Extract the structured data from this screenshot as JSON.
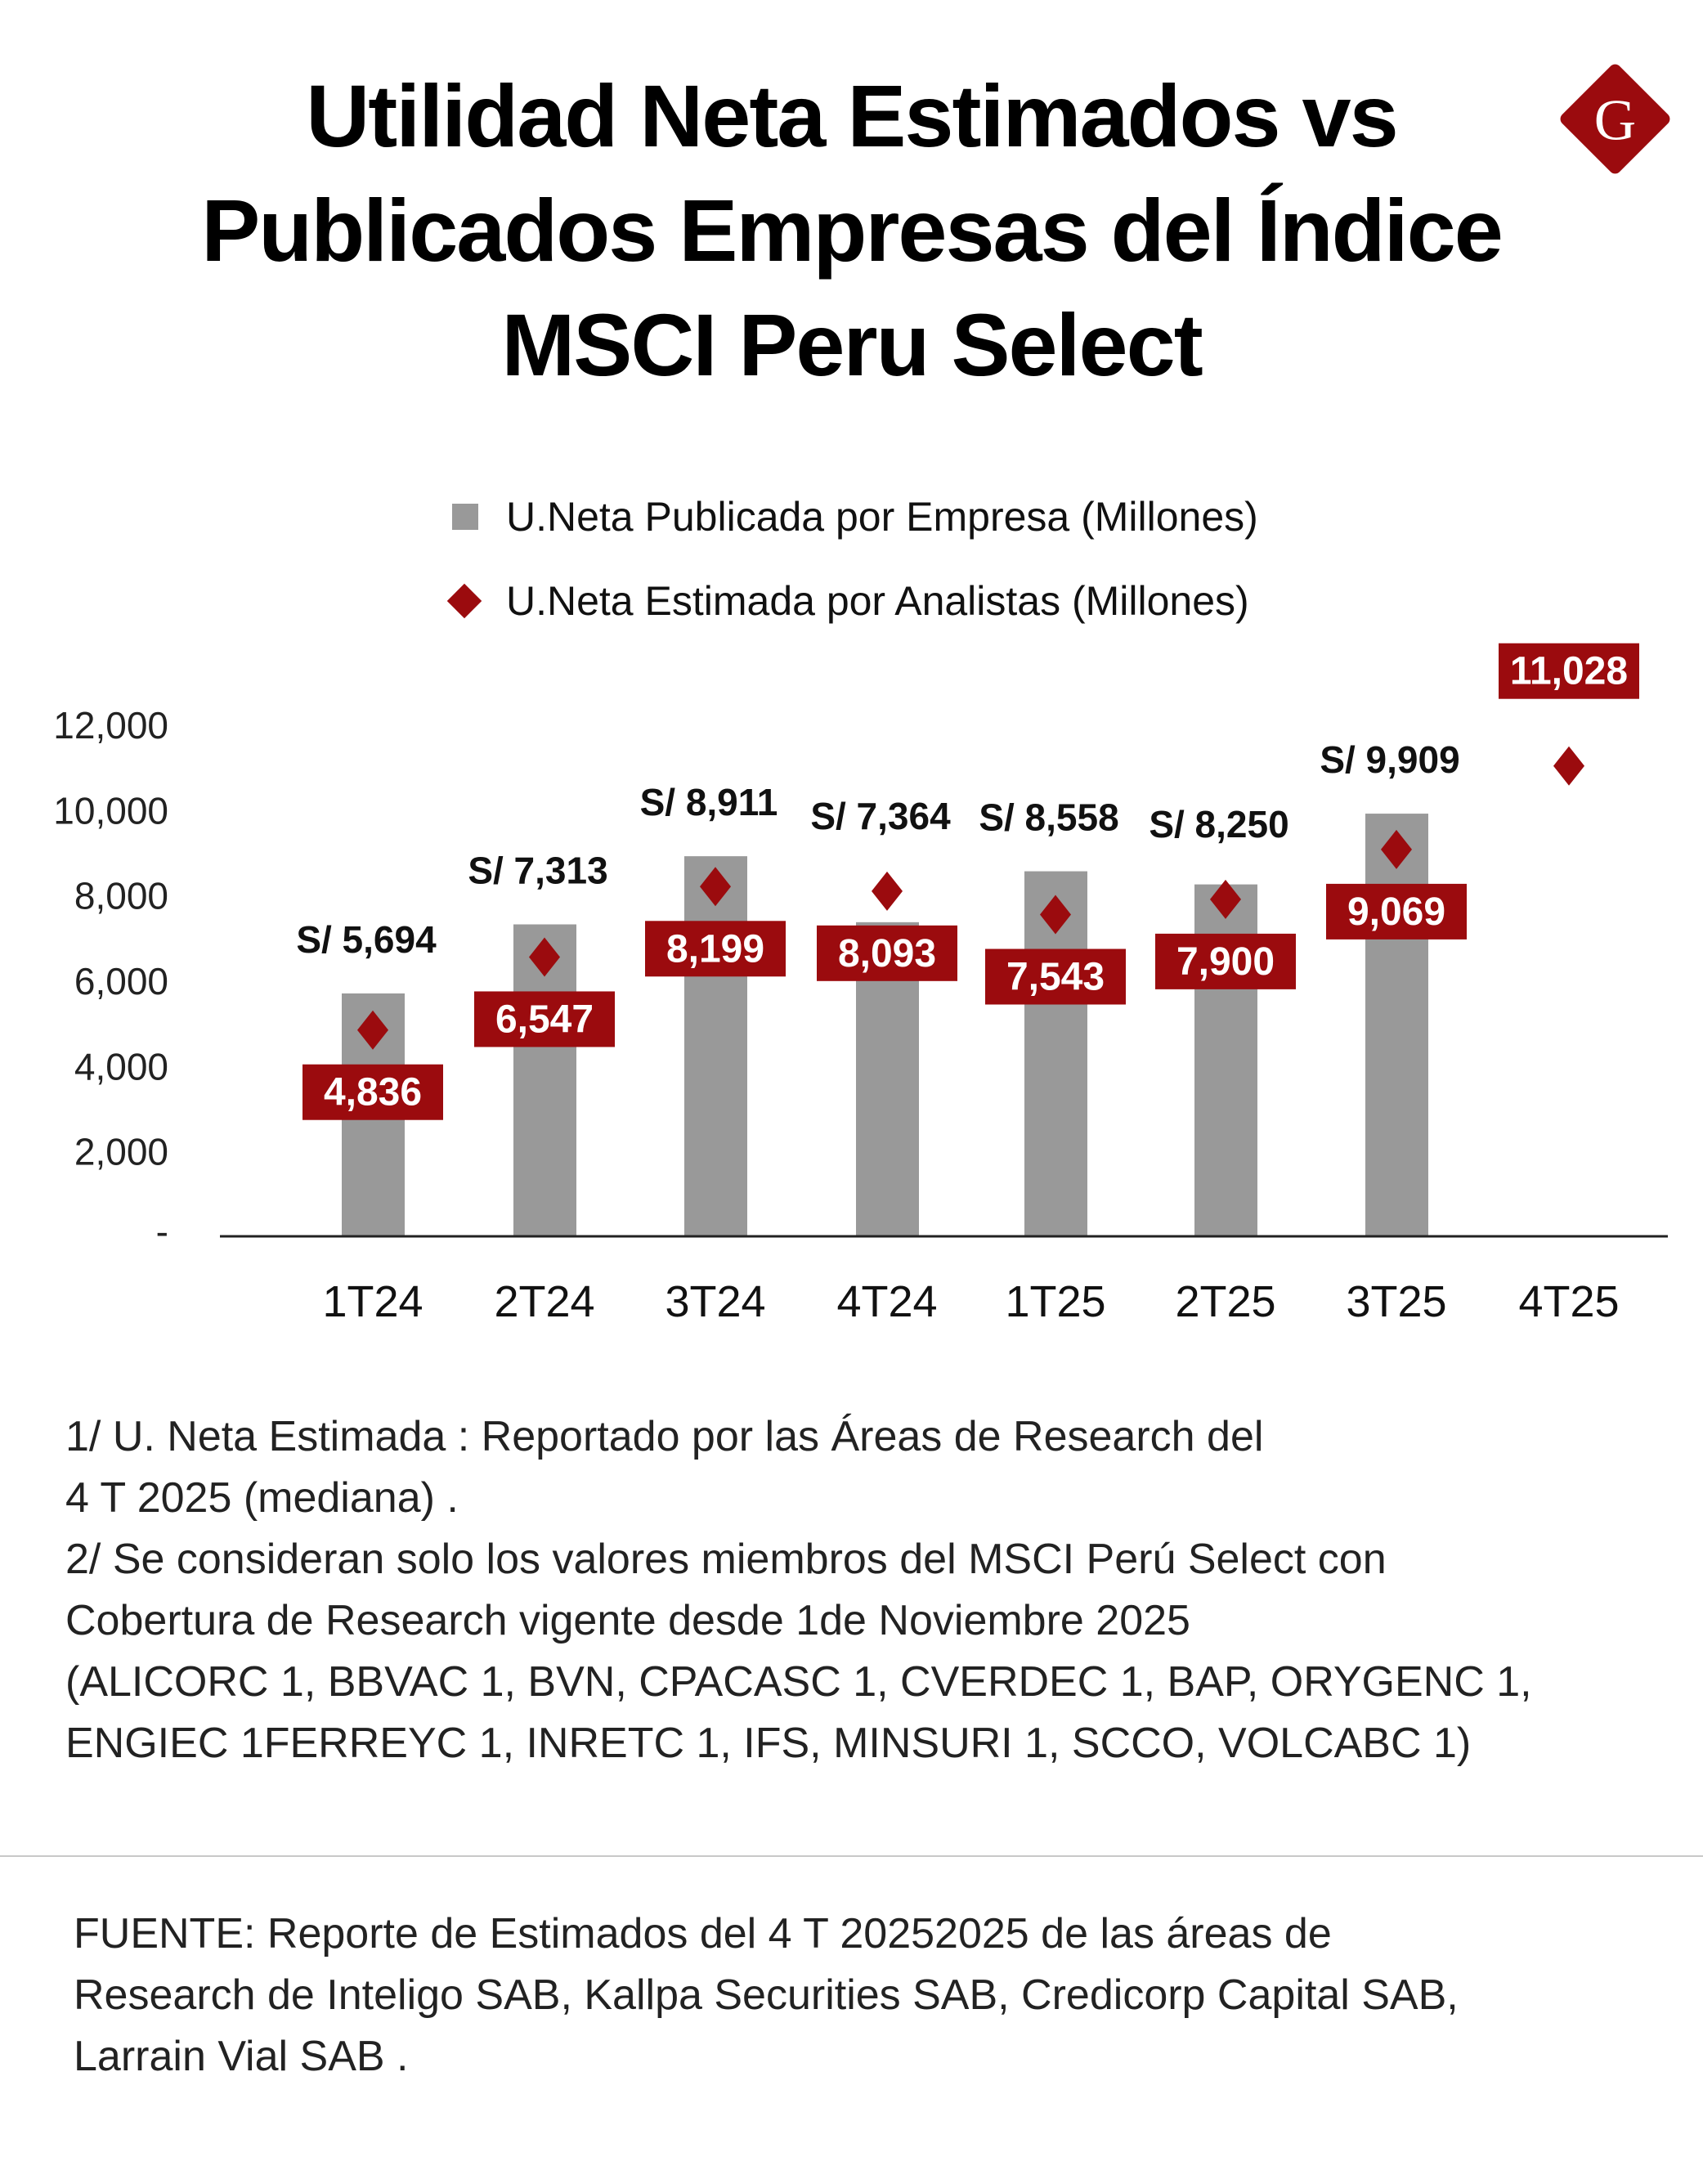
{
  "title": {
    "lines": [
      "Utilidad Neta Estimados vs",
      "Publicados Empresas del Índice",
      "MSCI Peru Select"
    ]
  },
  "logo": {
    "letter": "G",
    "color": "#9b0b0e"
  },
  "legend": {
    "published": "U.Neta Publicada por Empresa (Millones)",
    "estimated": "U.Neta Estimada por Analistas (Millones)"
  },
  "chart_data": {
    "type": "bar",
    "title": "",
    "xlabel": "",
    "ylabel": "",
    "ylim": [
      0,
      12000
    ],
    "yticks": [
      0,
      2000,
      4000,
      6000,
      8000,
      10000,
      12000
    ],
    "ytick_labels": [
      "-",
      "2,000",
      "4,000",
      "6,000",
      "8,000",
      "10,000",
      "12,000"
    ],
    "grid": false,
    "legend_position": "top",
    "categories": [
      "1T24",
      "2T24",
      "3T24",
      "4T24",
      "1T25",
      "2T25",
      "3T25",
      "4T25"
    ],
    "series": [
      {
        "name": "U.Neta Publicada por Empresa (Millones)",
        "type": "bar",
        "color": "#999999",
        "values": [
          5694,
          7313,
          8911,
          7364,
          8558,
          8250,
          9909,
          null
        ],
        "labels": [
          "S/ 5,694",
          "S/ 7,313",
          "S/ 8,911",
          "S/ 7,364",
          "S/ 8,558",
          "S/ 8,250",
          "S/ 9,909",
          ""
        ]
      },
      {
        "name": "U.Neta Estimada por Analistas (Millones)",
        "type": "scatter",
        "marker": "diamond",
        "color": "#9b0b0e",
        "values": [
          4836,
          6547,
          8199,
          8093,
          7543,
          7900,
          9069,
          11028
        ],
        "labels": [
          "4,836",
          "6,547",
          "8,199",
          "8,093",
          "7,543",
          "7,900",
          "9,069",
          "11,028"
        ]
      }
    ]
  },
  "notes": [
    "1/ U. Neta Estimada : Reportado por las Áreas de Research del",
    "4 T 2025 (mediana) .",
    "2/ Se consideran solo los valores miembros del MSCI Perú Select con",
    "Cobertura de Research vigente desde 1de Noviembre 2025",
    "(ALICORC 1, BBVAC 1, BVN, CPACASC 1, CVERDEC 1, BAP, ORYGENC 1,",
    "ENGIEC 1FERREYC 1, INRETC 1, IFS, MINSURI 1, SCCO, VOLCABC 1)"
  ],
  "source": [
    "FUENTE: Reporte de Estimados del 4 T 20252025 de las áreas de",
    "Research de Inteligo SAB, Kallpa Securities SAB, Credicorp Capital SAB,",
    "Larrain Vial SAB ."
  ]
}
